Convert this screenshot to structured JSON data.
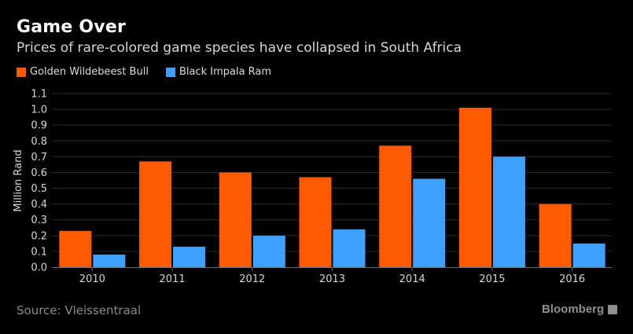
{
  "header": {
    "title": "Game Over",
    "subtitle": "Prices of rare-colored game species have collapsed in South Africa"
  },
  "footer": {
    "source": "Source: Vleissentraal",
    "brand": "Bloomberg"
  },
  "chart_data": {
    "type": "bar",
    "title": "Game Over",
    "subtitle": "Prices of rare-colored game species have collapsed in South Africa",
    "xlabel": "",
    "ylabel": "Million Rand",
    "categories": [
      "2010",
      "2011",
      "2012",
      "2013",
      "2014",
      "2015",
      "2016"
    ],
    "series": [
      {
        "name": "Golden Wildebeest Bull",
        "color": "#ff5a00",
        "values": [
          0.23,
          0.67,
          0.6,
          0.57,
          0.77,
          1.01,
          0.4
        ]
      },
      {
        "name": "Black Impala Ram",
        "color": "#3ea1ff",
        "values": [
          0.08,
          0.13,
          0.2,
          0.24,
          0.56,
          0.7,
          0.15
        ]
      }
    ],
    "ylim": [
      0,
      1.1
    ],
    "yticks": [
      "0.0",
      "0.1",
      "0.2",
      "0.3",
      "0.4",
      "0.5",
      "0.6",
      "0.7",
      "0.8",
      "0.9",
      "1.0",
      "1.1"
    ],
    "grid": true,
    "legend": "top-left"
  }
}
